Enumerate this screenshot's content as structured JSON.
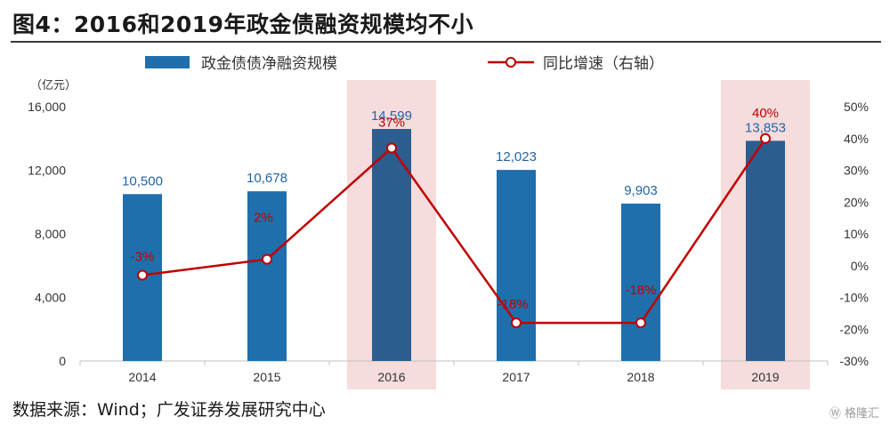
{
  "title": "图4：2016和2019年政金债融资规模均不小",
  "source": "数据来源：Wind；广发证券发展研究中心",
  "watermark": "格隆汇",
  "watermark_icon": "wechat-icon",
  "colors": {
    "bar": "#1f6fad",
    "bar_highlight": "#2c5d8f",
    "line": "#c00000",
    "highlight_band": "#f6dcdc",
    "bar_label": "#2464a6",
    "line_label": "#c00000",
    "axis_text": "#333333"
  },
  "chart_data": {
    "type": "bar",
    "categories": [
      "2014",
      "2015",
      "2016",
      "2017",
      "2018",
      "2019"
    ],
    "highlighted_categories": [
      "2016",
      "2019"
    ],
    "left_axis_unit": "（亿元）",
    "ylim": [
      0,
      16000
    ],
    "y_ticks": [
      "0",
      "4,000",
      "8,000",
      "12,000",
      "16,000"
    ],
    "y2lim": [
      -30,
      50
    ],
    "y2_ticks": [
      "-30%",
      "-20%",
      "-10%",
      "0%",
      "10%",
      "20%",
      "30%",
      "40%",
      "50%"
    ],
    "grid": false,
    "legend_position": "top",
    "series": [
      {
        "name": "政金债债净融资规模",
        "type": "bar",
        "axis": "left",
        "values": [
          10500,
          10678,
          14599,
          12023,
          9903,
          13853
        ],
        "labels": [
          "10,500",
          "10,678",
          "14,599",
          "12,023",
          "9,903",
          "13,853"
        ]
      },
      {
        "name": "同比增速（右轴）",
        "type": "line",
        "axis": "right",
        "values": [
          -3,
          2,
          37,
          -18,
          -18,
          40
        ],
        "labels": [
          "-3%",
          "2%",
          "37%",
          "-18%",
          "-18%",
          "40%"
        ]
      }
    ]
  }
}
